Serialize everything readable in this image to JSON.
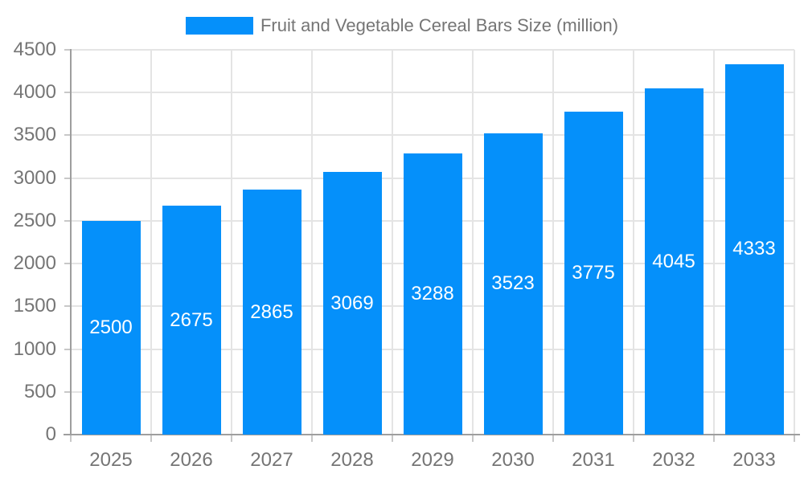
{
  "chart_data": {
    "type": "bar",
    "title": "Fruit and Vegetable Cereal Bars Size (million)",
    "legend": {
      "label": "Fruit and Vegetable Cereal Bars Size (million)",
      "position": "top-center"
    },
    "categories": [
      "2025",
      "2026",
      "2027",
      "2028",
      "2029",
      "2030",
      "2031",
      "2032",
      "2033"
    ],
    "values": [
      2500,
      2675,
      2865,
      3069,
      3288,
      3523,
      3775,
      4045,
      4333
    ],
    "value_labels_inside_bars": true,
    "xlabel": "",
    "ylabel": "",
    "ylim": [
      0,
      4500
    ],
    "yticks": [
      0,
      500,
      1000,
      1500,
      2000,
      2500,
      3000,
      3500,
      4000,
      4500
    ],
    "grid": true,
    "colors": {
      "bar": "#0590fa",
      "value_label": "#ffffff",
      "axis_text": "#757575",
      "title_text": "#757575",
      "gridline": "#e4e4e4",
      "axis_line": "#9e9e9e",
      "tick": "#c8c8c8",
      "background": "#ffffff"
    }
  }
}
